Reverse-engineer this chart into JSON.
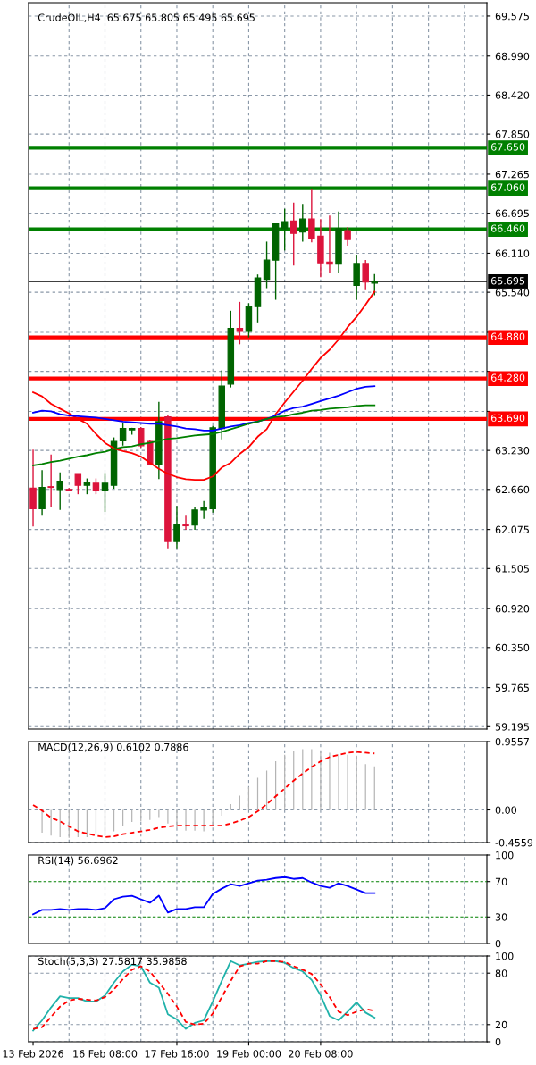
{
  "chart_data": [
    {
      "type": "candlestick",
      "title": "CrudeOIL,H4  65.675 65.805 65.495 65.695",
      "categories": [
        null,
        null,
        null,
        null,
        null,
        null,
        null,
        null,
        null,
        null,
        null,
        null,
        null,
        null,
        null,
        null,
        null,
        null,
        null,
        null,
        null,
        null,
        null,
        null,
        null,
        null,
        null,
        null,
        null,
        null,
        null,
        null,
        null,
        null,
        null,
        null,
        null,
        null,
        null,
        null,
        null,
        null,
        null,
        null,
        null,
        null,
        null,
        null,
        null,
        null,
        null
      ],
      "ohlc": [
        [
          62.68,
          63.24,
          62.12,
          62.38
        ],
        [
          62.38,
          62.94,
          62.29,
          62.69
        ],
        [
          62.7,
          63.17,
          62.4,
          62.69
        ],
        [
          62.66,
          62.91,
          62.36,
          62.78
        ],
        [
          62.66,
          62.68,
          62.63,
          62.65
        ],
        [
          62.89,
          62.89,
          62.59,
          62.72
        ],
        [
          62.72,
          62.82,
          62.59,
          62.76
        ],
        [
          62.75,
          62.82,
          62.59,
          62.64
        ],
        [
          62.64,
          62.9,
          62.33,
          62.75
        ],
        [
          62.72,
          63.42,
          62.67,
          63.36
        ],
        [
          63.37,
          63.64,
          63.3,
          63.55
        ],
        [
          63.53,
          63.56,
          63.46,
          63.55
        ],
        [
          63.55,
          63.57,
          63.27,
          63.3
        ],
        [
          63.36,
          63.38,
          63.01,
          63.03
        ],
        [
          63.03,
          63.94,
          62.81,
          63.65
        ],
        [
          63.72,
          63.74,
          61.8,
          61.9
        ],
        [
          61.9,
          62.42,
          61.8,
          62.14
        ],
        [
          62.14,
          62.29,
          62.07,
          62.13
        ],
        [
          62.14,
          62.4,
          62.07,
          62.36
        ],
        [
          62.36,
          62.49,
          62.23,
          62.39
        ],
        [
          62.38,
          63.59,
          62.32,
          63.56
        ],
        [
          63.55,
          64.4,
          63.39,
          64.17
        ],
        [
          64.2,
          65.27,
          64.15,
          65.01
        ],
        [
          65.01,
          65.4,
          64.78,
          64.97
        ],
        [
          64.97,
          65.38,
          64.88,
          65.33
        ],
        [
          65.33,
          65.8,
          65.1,
          65.75
        ],
        [
          65.73,
          66.28,
          65.6,
          66.01
        ],
        [
          66.01,
          66.54,
          65.43,
          66.54
        ],
        [
          66.47,
          66.76,
          66.15,
          66.57
        ],
        [
          66.58,
          66.85,
          65.93,
          66.4
        ],
        [
          66.42,
          66.83,
          66.28,
          66.61
        ],
        [
          66.61,
          67.05,
          66.27,
          66.32
        ],
        [
          66.36,
          66.61,
          65.76,
          65.97
        ],
        [
          65.98,
          66.66,
          65.83,
          65.95
        ],
        [
          65.95,
          66.72,
          65.82,
          66.47
        ],
        [
          66.44,
          66.49,
          66.22,
          66.31
        ],
        [
          65.64,
          66.09,
          65.43,
          65.96
        ],
        [
          65.96,
          66.01,
          65.57,
          65.69
        ],
        [
          65.675,
          65.805,
          65.495,
          65.695
        ],
        null,
        null,
        null,
        null,
        null,
        null,
        null,
        null,
        null,
        null,
        null,
        null
      ],
      "colors": [
        "#dc143c",
        "#006400",
        "#dc143c",
        "#006400",
        "#dc143c",
        "#dc143c",
        "#006400",
        "#dc143c",
        "#006400",
        "#006400",
        "#006400",
        "#006400",
        "#dc143c",
        "#dc143c",
        "#006400",
        "#dc143c",
        "#006400",
        "#dc143c",
        "#006400",
        "#006400",
        "#006400",
        "#006400",
        "#006400",
        "#dc143c",
        "#006400",
        "#006400",
        "#006400",
        "#006400",
        "#006400",
        "#dc143c",
        "#006400",
        "#dc143c",
        "#dc143c",
        "#dc143c",
        "#006400",
        "#dc143c",
        "#006400",
        "#dc143c",
        "#006400",
        null,
        null,
        null,
        null,
        null,
        null,
        null,
        null,
        null,
        null,
        null,
        null
      ],
      "series": [
        {
          "type": "line",
          "color": "#ff0000",
          "values": [
            64.08,
            64.02,
            63.91,
            63.84,
            63.77,
            63.69,
            63.62,
            63.47,
            63.34,
            63.26,
            63.22,
            63.19,
            63.14,
            63.05,
            62.96,
            62.89,
            62.84,
            62.81,
            62.8,
            62.8,
            62.85,
            62.98,
            63.05,
            63.18,
            63.28,
            63.43,
            63.54,
            63.76,
            63.93,
            64.09,
            64.25,
            64.42,
            64.58,
            64.7,
            64.85,
            65.03,
            65.18,
            65.36,
            65.55,
            null,
            null,
            null,
            null,
            null,
            null,
            null,
            null,
            null,
            null,
            null,
            null
          ]
        },
        {
          "type": "line",
          "color": "#0000ff",
          "values": [
            63.78,
            63.81,
            63.8,
            63.76,
            63.74,
            63.73,
            63.72,
            63.71,
            63.69,
            63.67,
            63.65,
            63.64,
            63.63,
            63.62,
            63.62,
            63.6,
            63.58,
            63.55,
            63.54,
            63.52,
            63.52,
            63.55,
            63.58,
            63.6,
            63.63,
            63.65,
            63.69,
            63.74,
            63.81,
            63.85,
            63.87,
            63.91,
            63.95,
            63.99,
            64.03,
            64.08,
            64.13,
            64.16,
            64.17,
            null,
            null,
            null,
            null,
            null,
            null,
            null,
            null,
            null,
            null,
            null,
            null
          ]
        },
        {
          "type": "line",
          "color": "#008000",
          "values": [
            63.01,
            63.03,
            63.06,
            63.08,
            63.11,
            63.14,
            63.16,
            63.19,
            63.21,
            63.25,
            63.28,
            63.29,
            63.32,
            63.34,
            63.37,
            63.4,
            63.41,
            63.43,
            63.45,
            63.46,
            63.47,
            63.5,
            63.54,
            63.58,
            63.62,
            63.65,
            63.69,
            63.72,
            63.73,
            63.76,
            63.78,
            63.81,
            63.82,
            63.84,
            63.85,
            63.86,
            63.88,
            63.89,
            63.89,
            null,
            null,
            null,
            null,
            null,
            null,
            null,
            null,
            null,
            null,
            null,
            null
          ]
        }
      ],
      "ref_lines": [
        {
          "axis": "y",
          "value": 67.65,
          "label": "67.650",
          "color": "#008000"
        },
        {
          "axis": "y",
          "value": 67.06,
          "label": "67.060",
          "color": "#008000"
        },
        {
          "axis": "y",
          "value": 66.46,
          "label": "66.460",
          "color": "#008000"
        },
        {
          "axis": "y",
          "value": 65.695,
          "label": "65.695",
          "color": "#000000",
          "line_style": "solid"
        },
        {
          "axis": "y",
          "value": 64.88,
          "label": "64.880",
          "color": "#ff0000"
        },
        {
          "axis": "y",
          "value": 64.28,
          "label": "64.280",
          "color": "#ff0000"
        },
        {
          "axis": "y",
          "value": 63.69,
          "label": "63.690",
          "color": "#ff0000"
        }
      ],
      "ylim": [
        59.16,
        69.77
      ],
      "yticks": [
        {
          "value": 69.575,
          "label": "69.575"
        },
        {
          "value": 68.99,
          "label": "68.990"
        },
        {
          "value": 68.42,
          "label": "68.420"
        },
        {
          "value": 67.85,
          "label": "67.850"
        },
        {
          "value": 67.265,
          "label": "67.265"
        },
        {
          "value": 66.695,
          "label": "66.695"
        },
        {
          "value": 66.11,
          "label": "66.110"
        },
        {
          "value": 65.54,
          "label": "65.540"
        },
        {
          "value": 64.955,
          "label": null
        },
        {
          "value": 64.385,
          "label": null
        },
        {
          "value": 63.8,
          "label": null
        },
        {
          "value": 63.23,
          "label": "63.230"
        },
        {
          "value": 62.66,
          "label": "62.660"
        },
        {
          "value": 62.075,
          "label": "62.075"
        },
        {
          "value": 61.505,
          "label": "61.505"
        },
        {
          "value": 60.92,
          "label": "60.920"
        },
        {
          "value": 60.35,
          "label": "60.350"
        },
        {
          "value": 59.765,
          "label": "59.765"
        },
        {
          "value": 59.195,
          "label": "59.195"
        }
      ],
      "grid": true,
      "tick_labels": "y"
    },
    {
      "type": "bar",
      "title": "MACD(12,26,9) 0.6102 0.7886",
      "categories": [
        null,
        null,
        null,
        null,
        null,
        null,
        null,
        null,
        null,
        null,
        null,
        null,
        null,
        null,
        null,
        null,
        null,
        null,
        null,
        null,
        null,
        null,
        null,
        null,
        null,
        null,
        null,
        null,
        null,
        null,
        null,
        null,
        null,
        null,
        null,
        null,
        null,
        null,
        null,
        null,
        null,
        null,
        null,
        null,
        null,
        null,
        null,
        null,
        null,
        null,
        null
      ],
      "series": [
        {
          "type": "bar",
          "color": "#b4b4b4",
          "values": [
            null,
            -0.32,
            -0.36,
            -0.38,
            -0.39,
            -0.38,
            -0.38,
            -0.36,
            -0.35,
            -0.3,
            -0.23,
            -0.17,
            -0.16,
            -0.14,
            -0.1,
            -0.19,
            -0.25,
            -0.29,
            -0.29,
            -0.3,
            -0.21,
            -0.08,
            0.08,
            0.2,
            0.32,
            0.45,
            0.55,
            0.68,
            0.77,
            0.82,
            0.85,
            0.85,
            0.83,
            0.8,
            0.78,
            0.77,
            0.76,
            0.64,
            0.61,
            null,
            null,
            null,
            null,
            null,
            null,
            null,
            null,
            null,
            null,
            null,
            null
          ]
        },
        {
          "type": "line",
          "color": "#ff0000",
          "line_style": "dashed",
          "values": [
            0.07,
            -0.01,
            -0.11,
            -0.16,
            -0.23,
            -0.3,
            -0.33,
            -0.36,
            -0.38,
            -0.37,
            -0.34,
            -0.32,
            -0.3,
            -0.28,
            -0.25,
            -0.23,
            -0.22,
            -0.22,
            -0.22,
            -0.22,
            -0.22,
            -0.22,
            -0.19,
            -0.15,
            -0.1,
            -0.02,
            0.08,
            0.19,
            0.3,
            0.41,
            0.51,
            0.6,
            0.68,
            0.74,
            0.77,
            0.8,
            0.81,
            0.8,
            0.79,
            null,
            null,
            null,
            null,
            null,
            null,
            null,
            null,
            null,
            null,
            null,
            null
          ]
        }
      ],
      "ylim": [
        -0.4559,
        0.9557
      ],
      "yticks": [
        0.9557,
        {
          "value": 0,
          "label": "0.00"
        },
        -0.4559
      ],
      "grid": true,
      "tick_labels": "y"
    },
    {
      "type": "line",
      "title": "RSI(14) 56.6962",
      "categories": [
        null,
        null,
        null,
        null,
        null,
        null,
        null,
        null,
        null,
        null,
        null,
        null,
        null,
        null,
        null,
        null,
        null,
        null,
        null,
        null,
        null,
        null,
        null,
        null,
        null,
        null,
        null,
        null,
        null,
        null,
        null,
        null,
        null,
        null,
        null,
        null,
        null,
        null,
        null,
        null,
        null,
        null,
        null,
        null,
        null,
        null,
        null,
        null,
        null,
        null,
        null
      ],
      "series": [
        {
          "type": "line",
          "color": "#0000ff",
          "values": [
            33,
            38,
            38,
            39,
            38,
            39,
            39,
            38,
            40,
            50,
            53,
            54,
            50,
            46,
            54,
            35,
            39,
            39,
            41,
            41,
            56,
            62,
            67,
            65,
            68,
            71,
            72,
            74,
            75,
            73,
            74,
            69,
            65,
            63,
            68,
            65,
            61,
            57,
            57,
            null,
            null,
            null,
            null,
            null,
            null,
            null,
            null,
            null,
            null,
            null,
            null
          ]
        }
      ],
      "ref_lines": [
        {
          "axis": "y",
          "value": 70,
          "color": "#008000",
          "line_style": "dashed"
        },
        {
          "axis": "y",
          "value": 30,
          "color": "#008000",
          "line_style": "dashed"
        }
      ],
      "ylim": [
        0,
        100
      ],
      "yticks": [
        100,
        70,
        30,
        0
      ],
      "grid": "x",
      "tick_labels": "y"
    },
    {
      "type": "line",
      "title": "Stoch(5,3,3) 27.5817 35.9858",
      "categories": [
        "13 Feb 2026",
        null,
        null,
        null,
        null,
        null,
        null,
        null,
        "16 Feb 08:00",
        null,
        null,
        null,
        null,
        null,
        null,
        null,
        "17 Feb 16:00",
        null,
        null,
        null,
        null,
        null,
        null,
        null,
        "19 Feb 00:00",
        null,
        null,
        null,
        null,
        null,
        null,
        null,
        "20 Feb 08:00",
        null,
        null,
        null,
        null,
        null,
        null,
        null,
        null,
        null,
        null,
        null,
        null,
        null,
        null,
        null,
        null,
        null,
        null
      ],
      "series": [
        {
          "type": "line",
          "color": "#20b2aa",
          "values": [
            13,
            25,
            40,
            53,
            51,
            51,
            47,
            47,
            54,
            69,
            82,
            90,
            88,
            69,
            63,
            32,
            26,
            15,
            22,
            25,
            47,
            71,
            94,
            89,
            91,
            93,
            94,
            94,
            92,
            86,
            82,
            72,
            54,
            30,
            25,
            35,
            46,
            34,
            28,
            null,
            null,
            null,
            null,
            null,
            null,
            null,
            null,
            null,
            null,
            null,
            null
          ]
        },
        {
          "type": "line",
          "color": "#ff0000",
          "line_style": "dashed",
          "values": [
            15,
            17,
            29,
            41,
            48,
            50,
            49,
            48,
            52,
            61,
            73,
            84,
            88,
            82,
            69,
            56,
            41,
            23,
            20,
            21,
            33,
            52,
            71,
            88,
            91,
            91,
            94,
            94,
            93,
            88,
            84,
            79,
            67,
            52,
            35,
            31,
            35,
            38,
            36,
            null,
            null,
            null,
            null,
            null,
            null,
            null,
            null,
            null,
            null,
            null,
            null
          ]
        }
      ],
      "ylim": [
        0,
        100
      ],
      "yticks": [
        100,
        80,
        20,
        0
      ],
      "grid": true
    }
  ]
}
